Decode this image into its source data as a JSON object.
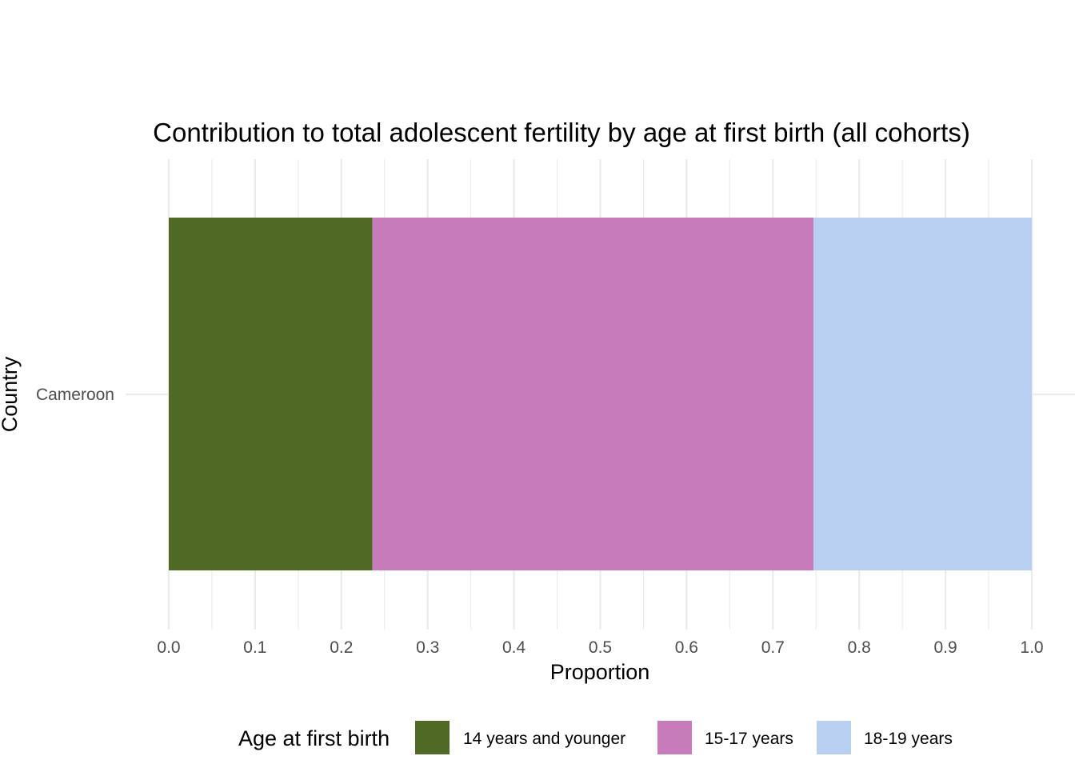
{
  "chart_data": {
    "type": "bar",
    "orientation": "horizontal",
    "stacked": true,
    "title": "Contribution to total adolescent fertility by age at first birth (all cohorts)",
    "xlabel": "Proportion",
    "ylabel": "Country",
    "xlim": [
      0,
      1
    ],
    "x_ticks": [
      "0.0",
      "0.1",
      "0.2",
      "0.3",
      "0.4",
      "0.5",
      "0.6",
      "0.7",
      "0.8",
      "0.9",
      "1.0"
    ],
    "categories": [
      "Cameroon"
    ],
    "legend_title": "Age at first birth",
    "legend_position": "bottom",
    "grid": true,
    "series": [
      {
        "name": "14 years and younger",
        "color": "#4f6a25",
        "values": [
          0.236
        ]
      },
      {
        "name": "15-17 years",
        "color": "#c87bba",
        "values": [
          0.511
        ]
      },
      {
        "name": "18-19 years",
        "color": "#b8cff1",
        "values": [
          0.253
        ]
      }
    ]
  }
}
